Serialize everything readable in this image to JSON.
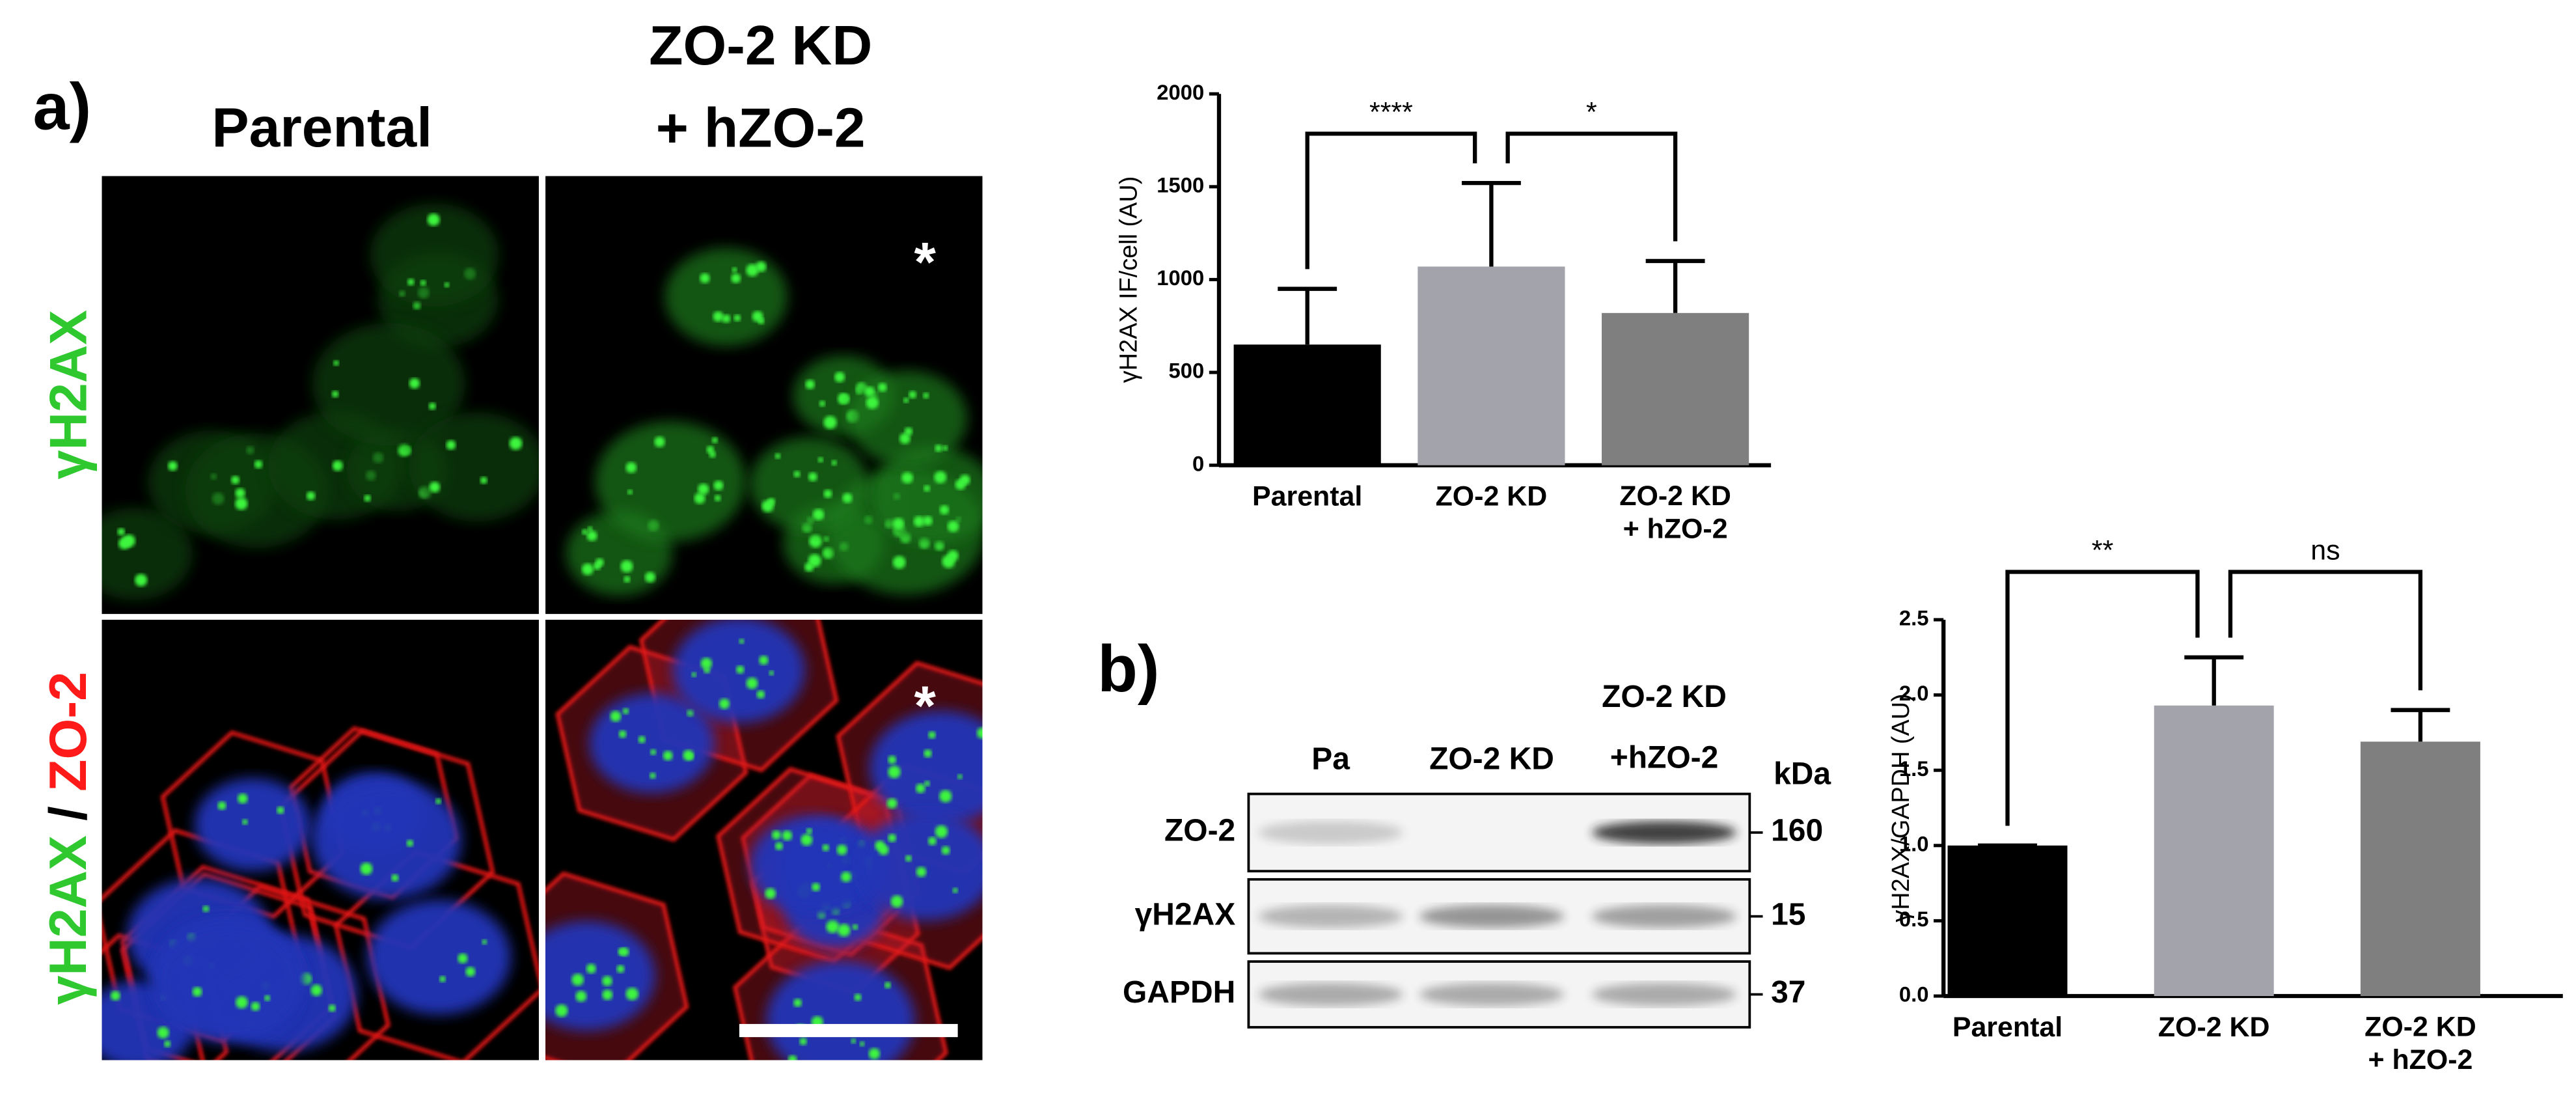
{
  "panel_a": {
    "label": "a)",
    "columns": [
      "Parental",
      "ZO-2 KD\n+ hZO-2"
    ],
    "row_top": "γH2AX",
    "row_bottom": [
      "γH2AX",
      "/",
      "ZO-2"
    ],
    "asterisks": [
      "*",
      "*"
    ]
  },
  "panel_b": {
    "label": "b)",
    "lanes": [
      "Pa",
      "ZO-2 KD",
      "ZO-2 KD\n+hZO-2"
    ],
    "mw_unit": "kDa",
    "rows": [
      {
        "protein": "ZO-2",
        "mw": 160
      },
      {
        "protein": "γH2AX",
        "mw": 15
      },
      {
        "protein": "GAPDH",
        "mw": 37
      }
    ]
  },
  "chart_data": [
    {
      "type": "bar",
      "ylabel": "γH2AX IF/cell (AU)",
      "categories": [
        "Parental",
        "ZO-2 KD",
        "ZO-2 KD\n+ hZO-2"
      ],
      "values": [
        650,
        1070,
        820
      ],
      "errors": [
        300,
        450,
        280
      ],
      "colors": [
        "#000000",
        "#a3a3ab",
        "#7f7f7f"
      ],
      "ylim": [
        0,
        2000
      ],
      "yticks": [
        0,
        500,
        1000,
        1500,
        2000
      ],
      "significance": [
        {
          "from": 0,
          "to": 1,
          "label": "****"
        },
        {
          "from": 1,
          "to": 2,
          "label": "*"
        }
      ]
    },
    {
      "type": "bar",
      "ylabel": "γH2AX/GAPDH (AU)",
      "categories": [
        "Parental",
        "ZO-2 KD",
        "ZO-2 KD\n+ hZO-2"
      ],
      "values": [
        1.0,
        1.93,
        1.69
      ],
      "errors": [
        0,
        0.32,
        0.21
      ],
      "colors": [
        "#000000",
        "#a3a3ab",
        "#7f7f7f"
      ],
      "ylim": [
        0,
        2.5
      ],
      "yticks": [
        {
          "value": 0,
          "label": "0.0"
        },
        0.5,
        {
          "value": 1,
          "label": "1.0"
        },
        1.5,
        {
          "value": 2,
          "label": "2.0"
        },
        2.5
      ],
      "significance": [
        {
          "from": 0,
          "to": 1,
          "label": "**"
        },
        {
          "from": 1,
          "to": 2,
          "label": "ns"
        }
      ]
    }
  ]
}
